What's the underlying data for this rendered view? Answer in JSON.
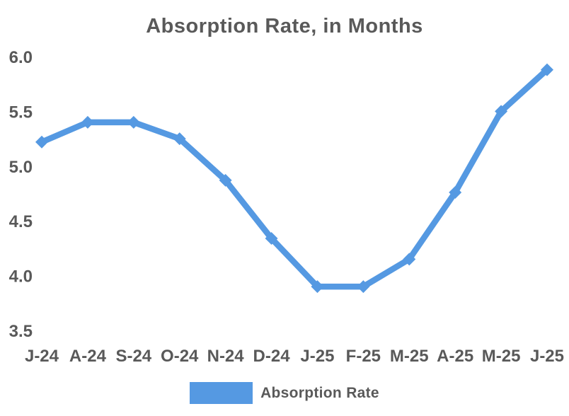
{
  "page": {
    "background": "#ffffff"
  },
  "chart_data": {
    "type": "line",
    "title": "Absorption Rate, in Months",
    "categories": [
      "J-24",
      "A-24",
      "S-24",
      "O-24",
      "N-24",
      "D-24",
      "J-25",
      "F-25",
      "M-25",
      "A-25",
      "M-25",
      "J-25"
    ],
    "series": [
      {
        "name": "Absorption Rate",
        "values": [
          5.22,
          5.4,
          5.4,
          5.25,
          4.87,
          4.34,
          3.9,
          3.9,
          4.15,
          4.76,
          5.5,
          5.88
        ]
      }
    ],
    "xlabel": "",
    "ylabel": "",
    "ylim": [
      3.5,
      6.0
    ],
    "y_ticks": [
      "6.0",
      "5.5",
      "5.0",
      "4.5",
      "4.0",
      "3.5"
    ],
    "grid": false,
    "axis_lines": false,
    "marker": "diamond",
    "legend_position": "bottom",
    "line_color": "#5599E2",
    "text_color": "#595959"
  },
  "legend": {
    "label": "Absorption Rate"
  }
}
